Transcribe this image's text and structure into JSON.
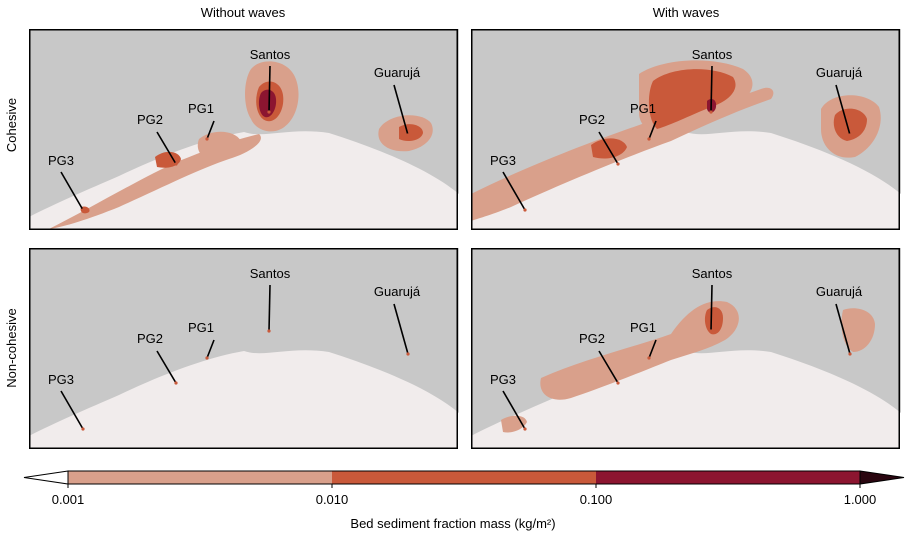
{
  "chart_data": {
    "type": "heatmap",
    "column_titles": [
      "Without waves",
      "With waves"
    ],
    "row_titles": [
      "Cohesive",
      "Non-cohesive"
    ],
    "site_labels": [
      "Santos",
      "Guarujá",
      "PG1",
      "PG2",
      "PG3"
    ],
    "colorbar": {
      "label": "Bed sediment fraction mass (kg/m²)",
      "scale": "log",
      "extend": "both",
      "range": [
        0.001,
        1.0
      ],
      "ticks": [
        0.001,
        0.01,
        0.1,
        1.0
      ],
      "tick_labels": [
        "0.001",
        "0.010",
        "0.100",
        "1.000"
      ],
      "bins": [
        {
          "from": 0.001,
          "to": 0.01,
          "color": "#d9a08b"
        },
        {
          "from": 0.01,
          "to": 0.1,
          "color": "#c9593a"
        },
        {
          "from": 0.1,
          "to": 1.0,
          "color": "#8c1530"
        }
      ],
      "under_color": "#ffffff",
      "over_color": "#2a0610"
    },
    "colors": {
      "land": "#c8c8c8",
      "sea": "#f1ecec"
    }
  }
}
